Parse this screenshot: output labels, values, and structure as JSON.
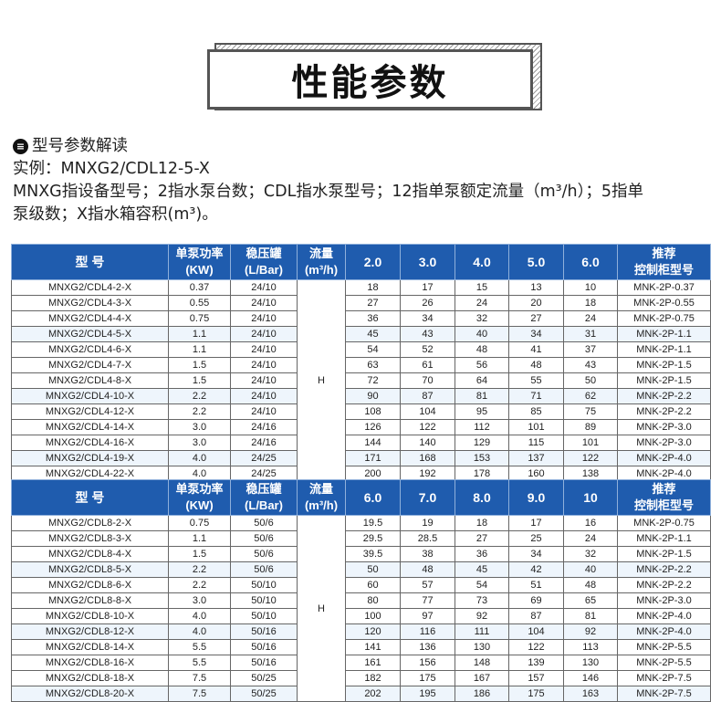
{
  "title": "性能参数",
  "intro": {
    "heading": "型号参数解读",
    "bullet_icon": "list-icon",
    "example": "实例：MNXG2/CDL12-5-X",
    "line1": "MNXG指设备型号；2指水泵台数；CDL指水泵型号；12指单泵额定流量（m³/h）；5指单",
    "line2": "泵级数；X指水箱容积(m³)。"
  },
  "colors": {
    "header_bg": "#1f5cae",
    "highlight_row": "#eef5fc"
  },
  "tables": [
    {
      "headers": {
        "model": "型  号",
        "power": [
          "单泵功率",
          "(KW)"
        ],
        "tank": [
          "稳压罐",
          "(L/Bar)"
        ],
        "flow": [
          "流量",
          "(m³/h)"
        ],
        "flows": [
          "2.0",
          "3.0",
          "4.0",
          "5.0",
          "6.0"
        ],
        "cabinet": [
          "推荐",
          "控制柜型号"
        ]
      },
      "h_label": "H",
      "highlight_rows": [
        3,
        7,
        11
      ],
      "rows": [
        [
          "MNXG2/CDL4-2-X",
          "0.37",
          "24/10",
          "18",
          "17",
          "15",
          "13",
          "10",
          "MNK-2P-0.37"
        ],
        [
          "MNXG2/CDL4-3-X",
          "0.55",
          "24/10",
          "27",
          "26",
          "24",
          "20",
          "18",
          "MNK-2P-0.55"
        ],
        [
          "MNXG2/CDL4-4-X",
          "0.75",
          "24/10",
          "36",
          "34",
          "32",
          "27",
          "24",
          "MNK-2P-0.75"
        ],
        [
          "MNXG2/CDL4-5-X",
          "1.1",
          "24/10",
          "45",
          "43",
          "40",
          "34",
          "31",
          "MNK-2P-1.1"
        ],
        [
          "MNXG2/CDL4-6-X",
          "1.1",
          "24/10",
          "54",
          "52",
          "48",
          "41",
          "37",
          "MNK-2P-1.1"
        ],
        [
          "MNXG2/CDL4-7-X",
          "1.5",
          "24/10",
          "63",
          "61",
          "56",
          "48",
          "43",
          "MNK-2P-1.5"
        ],
        [
          "MNXG2/CDL4-8-X",
          "1.5",
          "24/10",
          "72",
          "70",
          "64",
          "55",
          "50",
          "MNK-2P-1.5"
        ],
        [
          "MNXG2/CDL4-10-X",
          "2.2",
          "24/10",
          "90",
          "87",
          "81",
          "71",
          "62",
          "MNK-2P-2.2"
        ],
        [
          "MNXG2/CDL4-12-X",
          "2.2",
          "24/10",
          "108",
          "104",
          "95",
          "85",
          "75",
          "MNK-2P-2.2"
        ],
        [
          "MNXG2/CDL4-14-X",
          "3.0",
          "24/16",
          "126",
          "122",
          "112",
          "101",
          "89",
          "MNK-2P-3.0"
        ],
        [
          "MNXG2/CDL4-16-X",
          "3.0",
          "24/16",
          "144",
          "140",
          "129",
          "115",
          "101",
          "MNK-2P-3.0"
        ],
        [
          "MNXG2/CDL4-19-X",
          "4.0",
          "24/25",
          "171",
          "168",
          "153",
          "137",
          "122",
          "MNK-2P-4.0"
        ],
        [
          "MNXG2/CDL4-22-X",
          "4.0",
          "24/25",
          "200",
          "192",
          "178",
          "160",
          "138",
          "MNK-2P-4.0"
        ]
      ]
    },
    {
      "headers": {
        "model": "型  号",
        "power": [
          "单泵功率",
          "(KW)"
        ],
        "tank": [
          "稳压罐",
          "(L/Bar)"
        ],
        "flow": [
          "流量",
          "(m³/h)"
        ],
        "flows": [
          "6.0",
          "7.0",
          "8.0",
          "9.0",
          "10"
        ],
        "cabinet": [
          "推荐",
          "控制柜型号"
        ]
      },
      "h_label": "H",
      "highlight_rows": [
        3,
        7,
        11
      ],
      "rows": [
        [
          "MNXG2/CDL8-2-X",
          "0.75",
          "50/6",
          "19.5",
          "19",
          "18",
          "17",
          "16",
          "MNK-2P-0.75"
        ],
        [
          "MNXG2/CDL8-3-X",
          "1.1",
          "50/6",
          "29.5",
          "28.5",
          "27",
          "25",
          "24",
          "MNK-2P-1.1"
        ],
        [
          "MNXG2/CDL8-4-X",
          "1.5",
          "50/6",
          "39.5",
          "38",
          "36",
          "34",
          "32",
          "MNK-2P-1.5"
        ],
        [
          "MNXG2/CDL8-5-X",
          "2.2",
          "50/6",
          "50",
          "48",
          "45",
          "42",
          "40",
          "MNK-2P-2.2"
        ],
        [
          "MNXG2/CDL8-6-X",
          "2.2",
          "50/10",
          "60",
          "57",
          "54",
          "51",
          "48",
          "MNK-2P-2.2"
        ],
        [
          "MNXG2/CDL8-8-X",
          "3.0",
          "50/10",
          "80",
          "77",
          "73",
          "69",
          "65",
          "MNK-2P-3.0"
        ],
        [
          "MNXG2/CDL8-10-X",
          "4.0",
          "50/10",
          "100",
          "97",
          "92",
          "87",
          "81",
          "MNK-2P-4.0"
        ],
        [
          "MNXG2/CDL8-12-X",
          "4.0",
          "50/16",
          "120",
          "116",
          "111",
          "104",
          "92",
          "MNK-2P-4.0"
        ],
        [
          "MNXG2/CDL8-14-X",
          "5.5",
          "50/16",
          "141",
          "136",
          "130",
          "122",
          "113",
          "MNK-2P-5.5"
        ],
        [
          "MNXG2/CDL8-16-X",
          "5.5",
          "50/16",
          "161",
          "156",
          "148",
          "139",
          "130",
          "MNK-2P-5.5"
        ],
        [
          "MNXG2/CDL8-18-X",
          "7.5",
          "50/25",
          "182",
          "175",
          "167",
          "157",
          "146",
          "MNK-2P-7.5"
        ],
        [
          "MNXG2/CDL8-20-X",
          "7.5",
          "50/25",
          "202",
          "195",
          "186",
          "175",
          "163",
          "MNK-2P-7.5"
        ]
      ]
    }
  ]
}
